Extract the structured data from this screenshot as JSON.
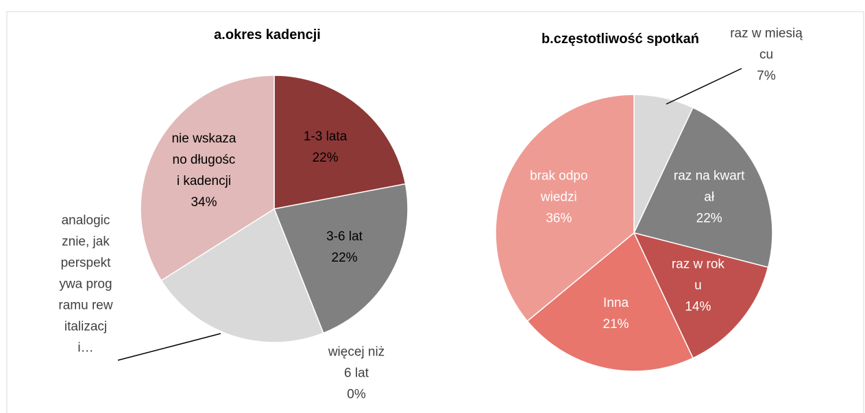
{
  "chart_data": [
    {
      "type": "pie",
      "title": "a.okres kadencji",
      "categories": [
        "1-3 lata",
        "3-6 lat",
        "więcej niż 6 lat",
        "analogicznie, jak perspektywa programu rewitalizacji…",
        "nie wskazano długości kadencji"
      ],
      "values": [
        22,
        22,
        0,
        22,
        34
      ],
      "value_labels": [
        "22%",
        "22%",
        "0%",
        null,
        "34%"
      ],
      "colors": [
        "#8c3836",
        "#808080",
        "#a6a6a6",
        "#d9d9d9",
        "#e0b9b8"
      ]
    },
    {
      "type": "pie",
      "title": "b.częstotliwość spotkań",
      "categories": [
        "raz w miesiącu",
        "raz na kwartał",
        "raz w roku",
        "Inna",
        "brak odpowiedzi"
      ],
      "values": [
        7,
        22,
        14,
        21,
        36
      ],
      "value_labels": [
        "7%",
        "22%",
        "14%",
        "21%",
        "36%"
      ],
      "colors": [
        "#d9d9d9",
        "#808080",
        "#c0504d",
        "#e8766c",
        "#ee9b94"
      ]
    }
  ]
}
